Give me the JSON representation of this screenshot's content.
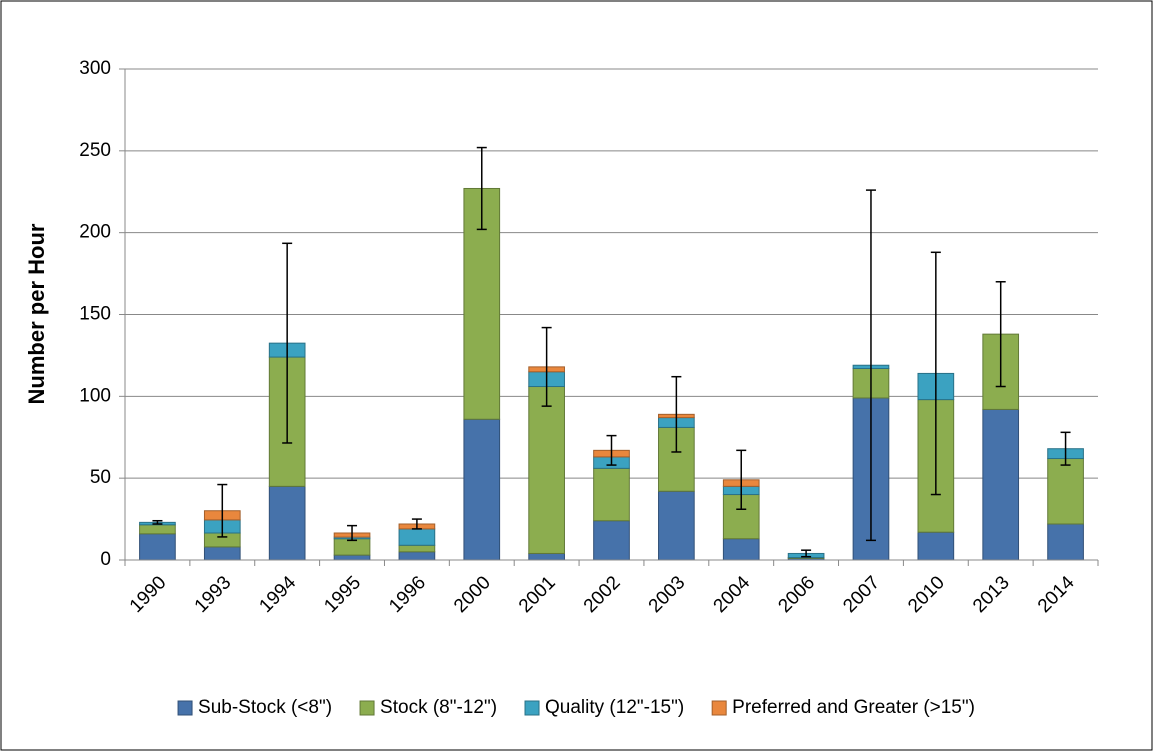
{
  "chart_data": {
    "type": "bar",
    "stacked": true,
    "y_label": "Number per Hour",
    "categories": [
      "1990",
      "1993",
      "1994",
      "1995",
      "1996",
      "2000",
      "2001",
      "2002",
      "2003",
      "2004",
      "2006",
      "2007",
      "2010",
      "2013",
      "2014"
    ],
    "series": [
      {
        "name": "Sub-Stock (<8\")",
        "color": "#4672aa",
        "values": [
          16,
          8,
          45,
          3,
          5,
          86,
          4,
          24,
          42,
          13,
          1,
          99,
          17,
          92,
          22
        ]
      },
      {
        "name": "Stock (8\"-12\")",
        "color": "#8cad4f",
        "values": [
          5.5,
          8.5,
          79,
          10,
          4,
          141,
          102,
          32,
          39,
          27,
          0.5,
          18,
          81,
          46,
          40
        ]
      },
      {
        "name": "Quality (12\"-15\")",
        "color": "#3ba2c1",
        "values": [
          1.5,
          8,
          8.5,
          1,
          10,
          0,
          9,
          7,
          6,
          5,
          2.5,
          2,
          16,
          0,
          6
        ]
      },
      {
        "name": "Preferred and Greater (>15\")",
        "color": "#e9873d",
        "values": [
          0,
          5.6,
          0,
          2.5,
          3,
          0,
          3,
          4,
          2,
          4,
          0,
          0,
          0,
          0,
          0
        ]
      }
    ],
    "errors": [
      1,
      16,
      61,
      4.5,
      3,
      25,
      24,
      9,
      23,
      18,
      2,
      107,
      74,
      32,
      10
    ],
    "ylim": [
      0,
      300
    ],
    "yticks": [
      0,
      50,
      100,
      150,
      200,
      250,
      300
    ],
    "grid": true,
    "legend": "bottom"
  }
}
